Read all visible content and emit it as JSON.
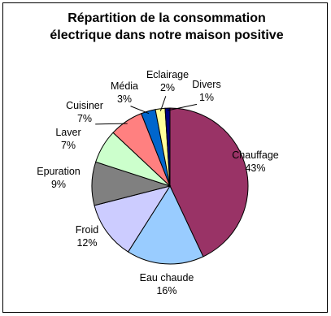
{
  "chart_data": {
    "type": "pie",
    "title": "Répartition de la consommation électrique dans notre maison positive",
    "categories": [
      "Chauffage",
      "Eau chaude",
      "Froid",
      "Epuration",
      "Laver",
      "Cuisiner",
      "Média",
      "Eclairage",
      "Divers"
    ],
    "values": [
      43,
      16,
      12,
      9,
      7,
      7,
      3,
      2,
      1
    ],
    "value_labels": [
      "43%",
      "16%",
      "12%",
      "9%",
      "7%",
      "7%",
      "3%",
      "2%",
      "1%"
    ],
    "colors": [
      "#993366",
      "#99ccff",
      "#ccccff",
      "#808080",
      "#ccffcc",
      "#ff8080",
      "#0066cc",
      "#ffff99",
      "#000080"
    ]
  }
}
